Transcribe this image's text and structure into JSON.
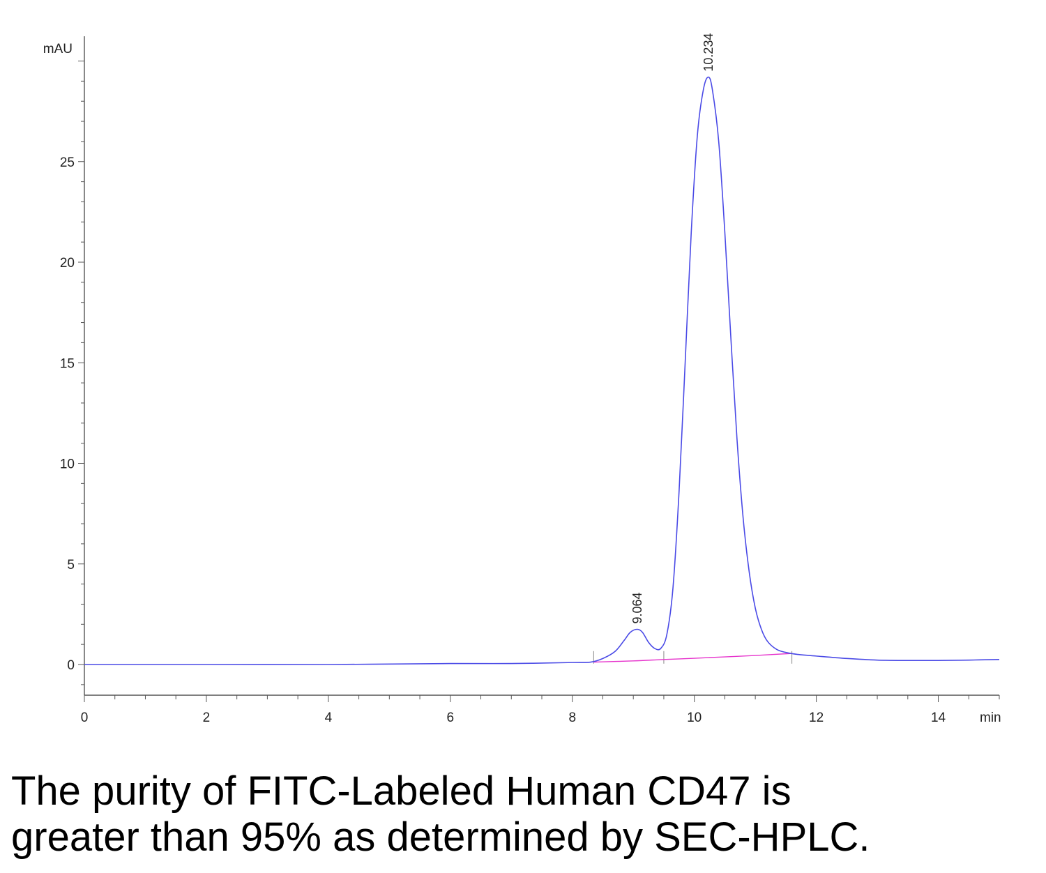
{
  "chart_data": {
    "type": "line",
    "y_unit": "mAU",
    "x_unit": "min",
    "xlim": [
      0,
      15
    ],
    "ylim": [
      -1.5,
      31
    ],
    "x_ticks": [
      "0",
      "2",
      "4",
      "6",
      "8",
      "10",
      "12",
      "14"
    ],
    "y_ticks": [
      "0",
      "5",
      "10",
      "15",
      "20",
      "25"
    ],
    "grid": false,
    "series": [
      {
        "color": "#4a4ae6",
        "x": [
          0,
          2,
          4,
          6,
          7,
          8,
          8.3,
          8.5,
          8.7,
          8.85,
          8.95,
          9.064,
          9.15,
          9.25,
          9.35,
          9.45,
          9.55,
          9.65,
          9.75,
          9.85,
          9.95,
          10.05,
          10.15,
          10.234,
          10.3,
          10.4,
          10.5,
          10.6,
          10.7,
          10.8,
          10.9,
          11.0,
          11.1,
          11.2,
          11.35,
          11.5,
          11.7,
          12.0,
          12.5,
          13.0,
          13.5,
          14.0,
          14.5,
          15.0
        ],
        "y": [
          0,
          0,
          0,
          0.05,
          0.05,
          0.1,
          0.12,
          0.3,
          0.65,
          1.2,
          1.6,
          1.75,
          1.6,
          1.1,
          0.8,
          0.8,
          1.5,
          3.8,
          8.6,
          15.0,
          21.5,
          26.3,
          28.6,
          29.2,
          28.5,
          26.0,
          21.5,
          16.2,
          11.2,
          7.3,
          4.6,
          2.8,
          1.75,
          1.15,
          0.75,
          0.6,
          0.5,
          0.42,
          0.3,
          0.22,
          0.2,
          0.2,
          0.22,
          0.25
        ]
      },
      {
        "color": "#e633cc",
        "x": [
          8.35,
          9.0,
          9.5,
          10.0,
          10.5,
          11.0,
          11.6
        ],
        "y": [
          0.12,
          0.18,
          0.25,
          0.31,
          0.38,
          0.45,
          0.55
        ]
      }
    ],
    "peak_labels": [
      {
        "x": 9.064,
        "y": 1.75,
        "text": "9.064"
      },
      {
        "x": 10.234,
        "y": 29.2,
        "text": "10.234"
      }
    ],
    "baseline_markers": [
      8.35,
      9.5,
      11.6
    ]
  },
  "caption": {
    "line1": "The purity of FITC-Labeled Human CD47 is",
    "line2": "greater than 95% as determined by SEC-HPLC."
  }
}
